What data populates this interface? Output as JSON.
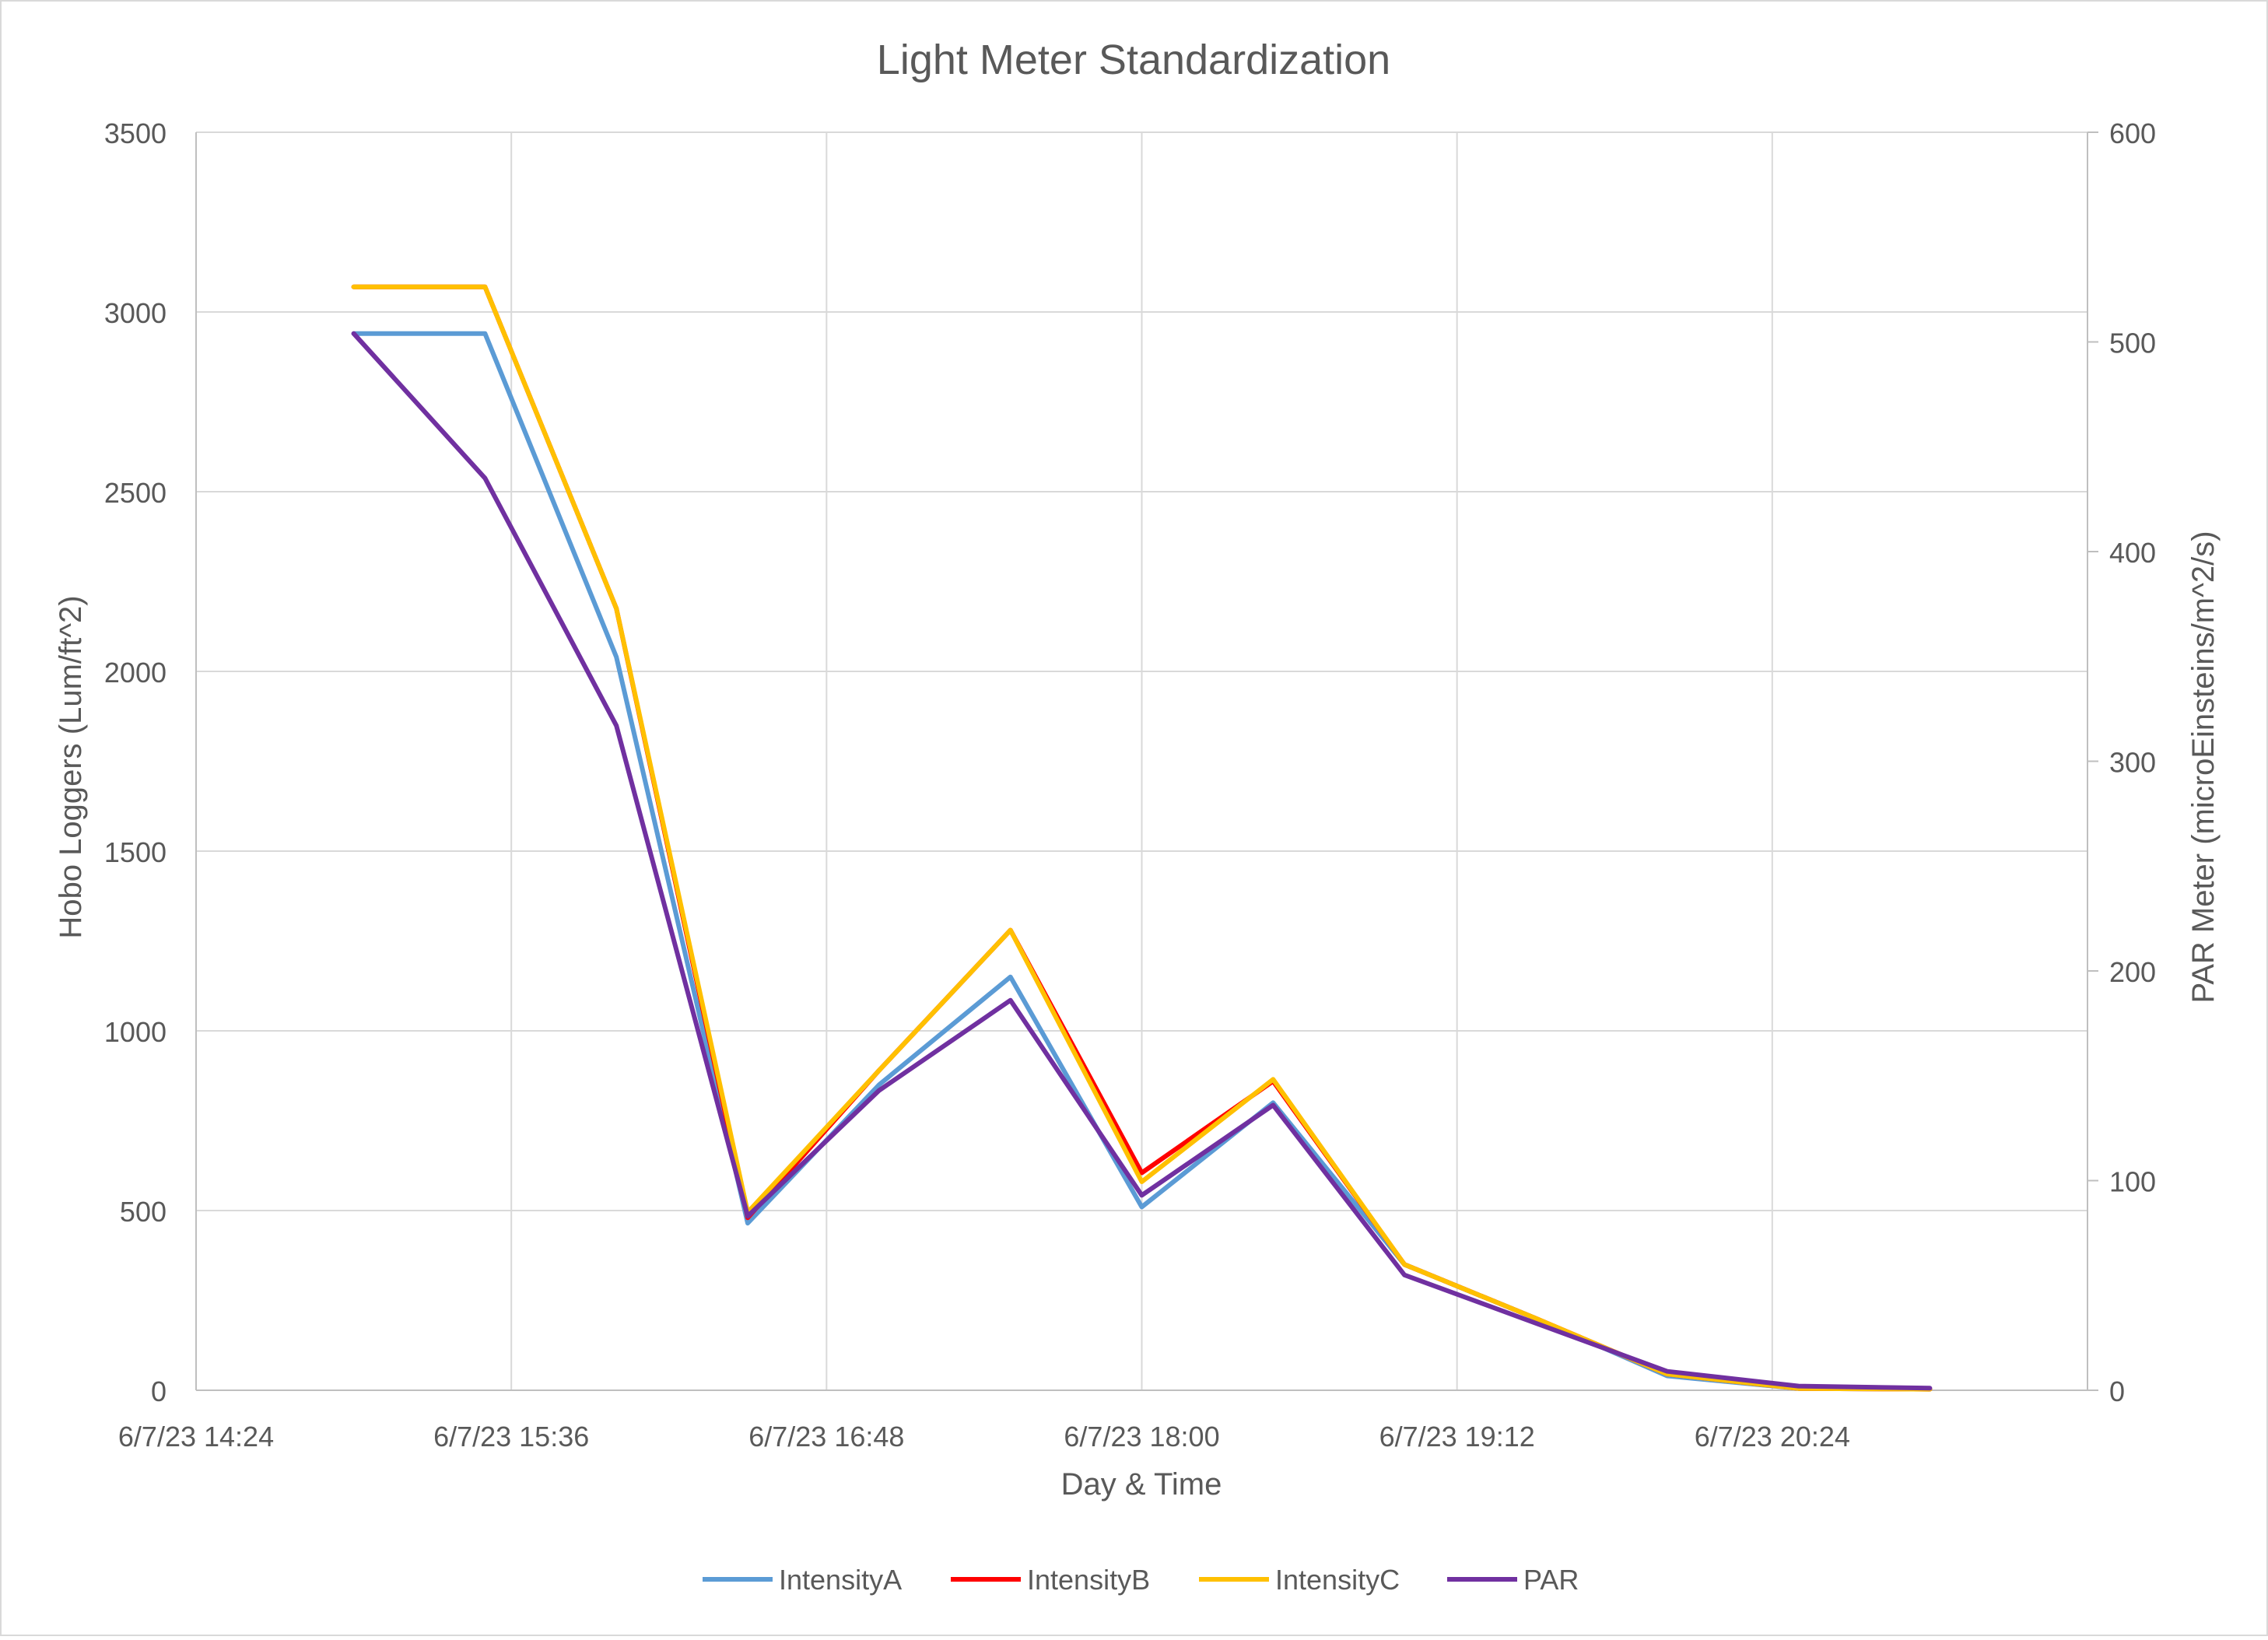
{
  "chart_data": {
    "type": "line",
    "title": "Light Meter Standardization",
    "xlabel": "Day & Time",
    "ylabel": "Hobo Loggers (Lum/ft^2)",
    "y2label": "PAR Meter (microEinsteins/m^2/s)",
    "x_axis_kind": "datetime",
    "xlim": [
      "2023-06-07 14:24",
      "2023-06-07 21:36"
    ],
    "xticks": [
      {
        "value": "2023-06-07 14:24",
        "label": "6/7/23 14:24"
      },
      {
        "value": "2023-06-07 15:36",
        "label": "6/7/23 15:36"
      },
      {
        "value": "2023-06-07 16:48",
        "label": "6/7/23 16:48"
      },
      {
        "value": "2023-06-07 18:00",
        "label": "6/7/23 18:00"
      },
      {
        "value": "2023-06-07 19:12",
        "label": "6/7/23 19:12"
      },
      {
        "value": "2023-06-07 20:24",
        "label": "6/7/23 20:24"
      }
    ],
    "ylim": [
      0,
      3500
    ],
    "yticks": [
      0,
      500,
      1000,
      1500,
      2000,
      2500,
      3000,
      3500
    ],
    "y2lim": [
      0,
      600
    ],
    "y2ticks": [
      0,
      100,
      200,
      300,
      400,
      500,
      600
    ],
    "grid": true,
    "legend_position": "bottom",
    "x": [
      "2023-06-07 15:00",
      "2023-06-07 15:30",
      "2023-06-07 16:00",
      "2023-06-07 16:30",
      "2023-06-07 17:00",
      "2023-06-07 17:30",
      "2023-06-07 18:00",
      "2023-06-07 18:30",
      "2023-06-07 19:00",
      "2023-06-07 19:30",
      "2023-06-07 20:00",
      "2023-06-07 20:30",
      "2023-06-07 21:00"
    ],
    "series": [
      {
        "name": "IntensityA",
        "axis": "left",
        "color": "#5B9BD5",
        "values": [
          2940,
          2940,
          2040,
          465,
          850,
          1150,
          510,
          800,
          350,
          200,
          40,
          5,
          3
        ]
      },
      {
        "name": "IntensityB",
        "axis": "left",
        "color": "#FF0000",
        "values": [
          3070,
          3070,
          2175,
          480,
          890,
          1280,
          605,
          860,
          350,
          200,
          45,
          5,
          3
        ]
      },
      {
        "name": "IntensityC",
        "axis": "left",
        "color": "#FFC000",
        "values": [
          3070,
          3070,
          2175,
          495,
          890,
          1280,
          580,
          865,
          350,
          200,
          45,
          5,
          3
        ]
      },
      {
        "name": "PAR",
        "axis": "right",
        "color": "#7030A0",
        "values": [
          504,
          435,
          317,
          83,
          143,
          186,
          93,
          136,
          55,
          32,
          9,
          2,
          1
        ]
      }
    ]
  }
}
